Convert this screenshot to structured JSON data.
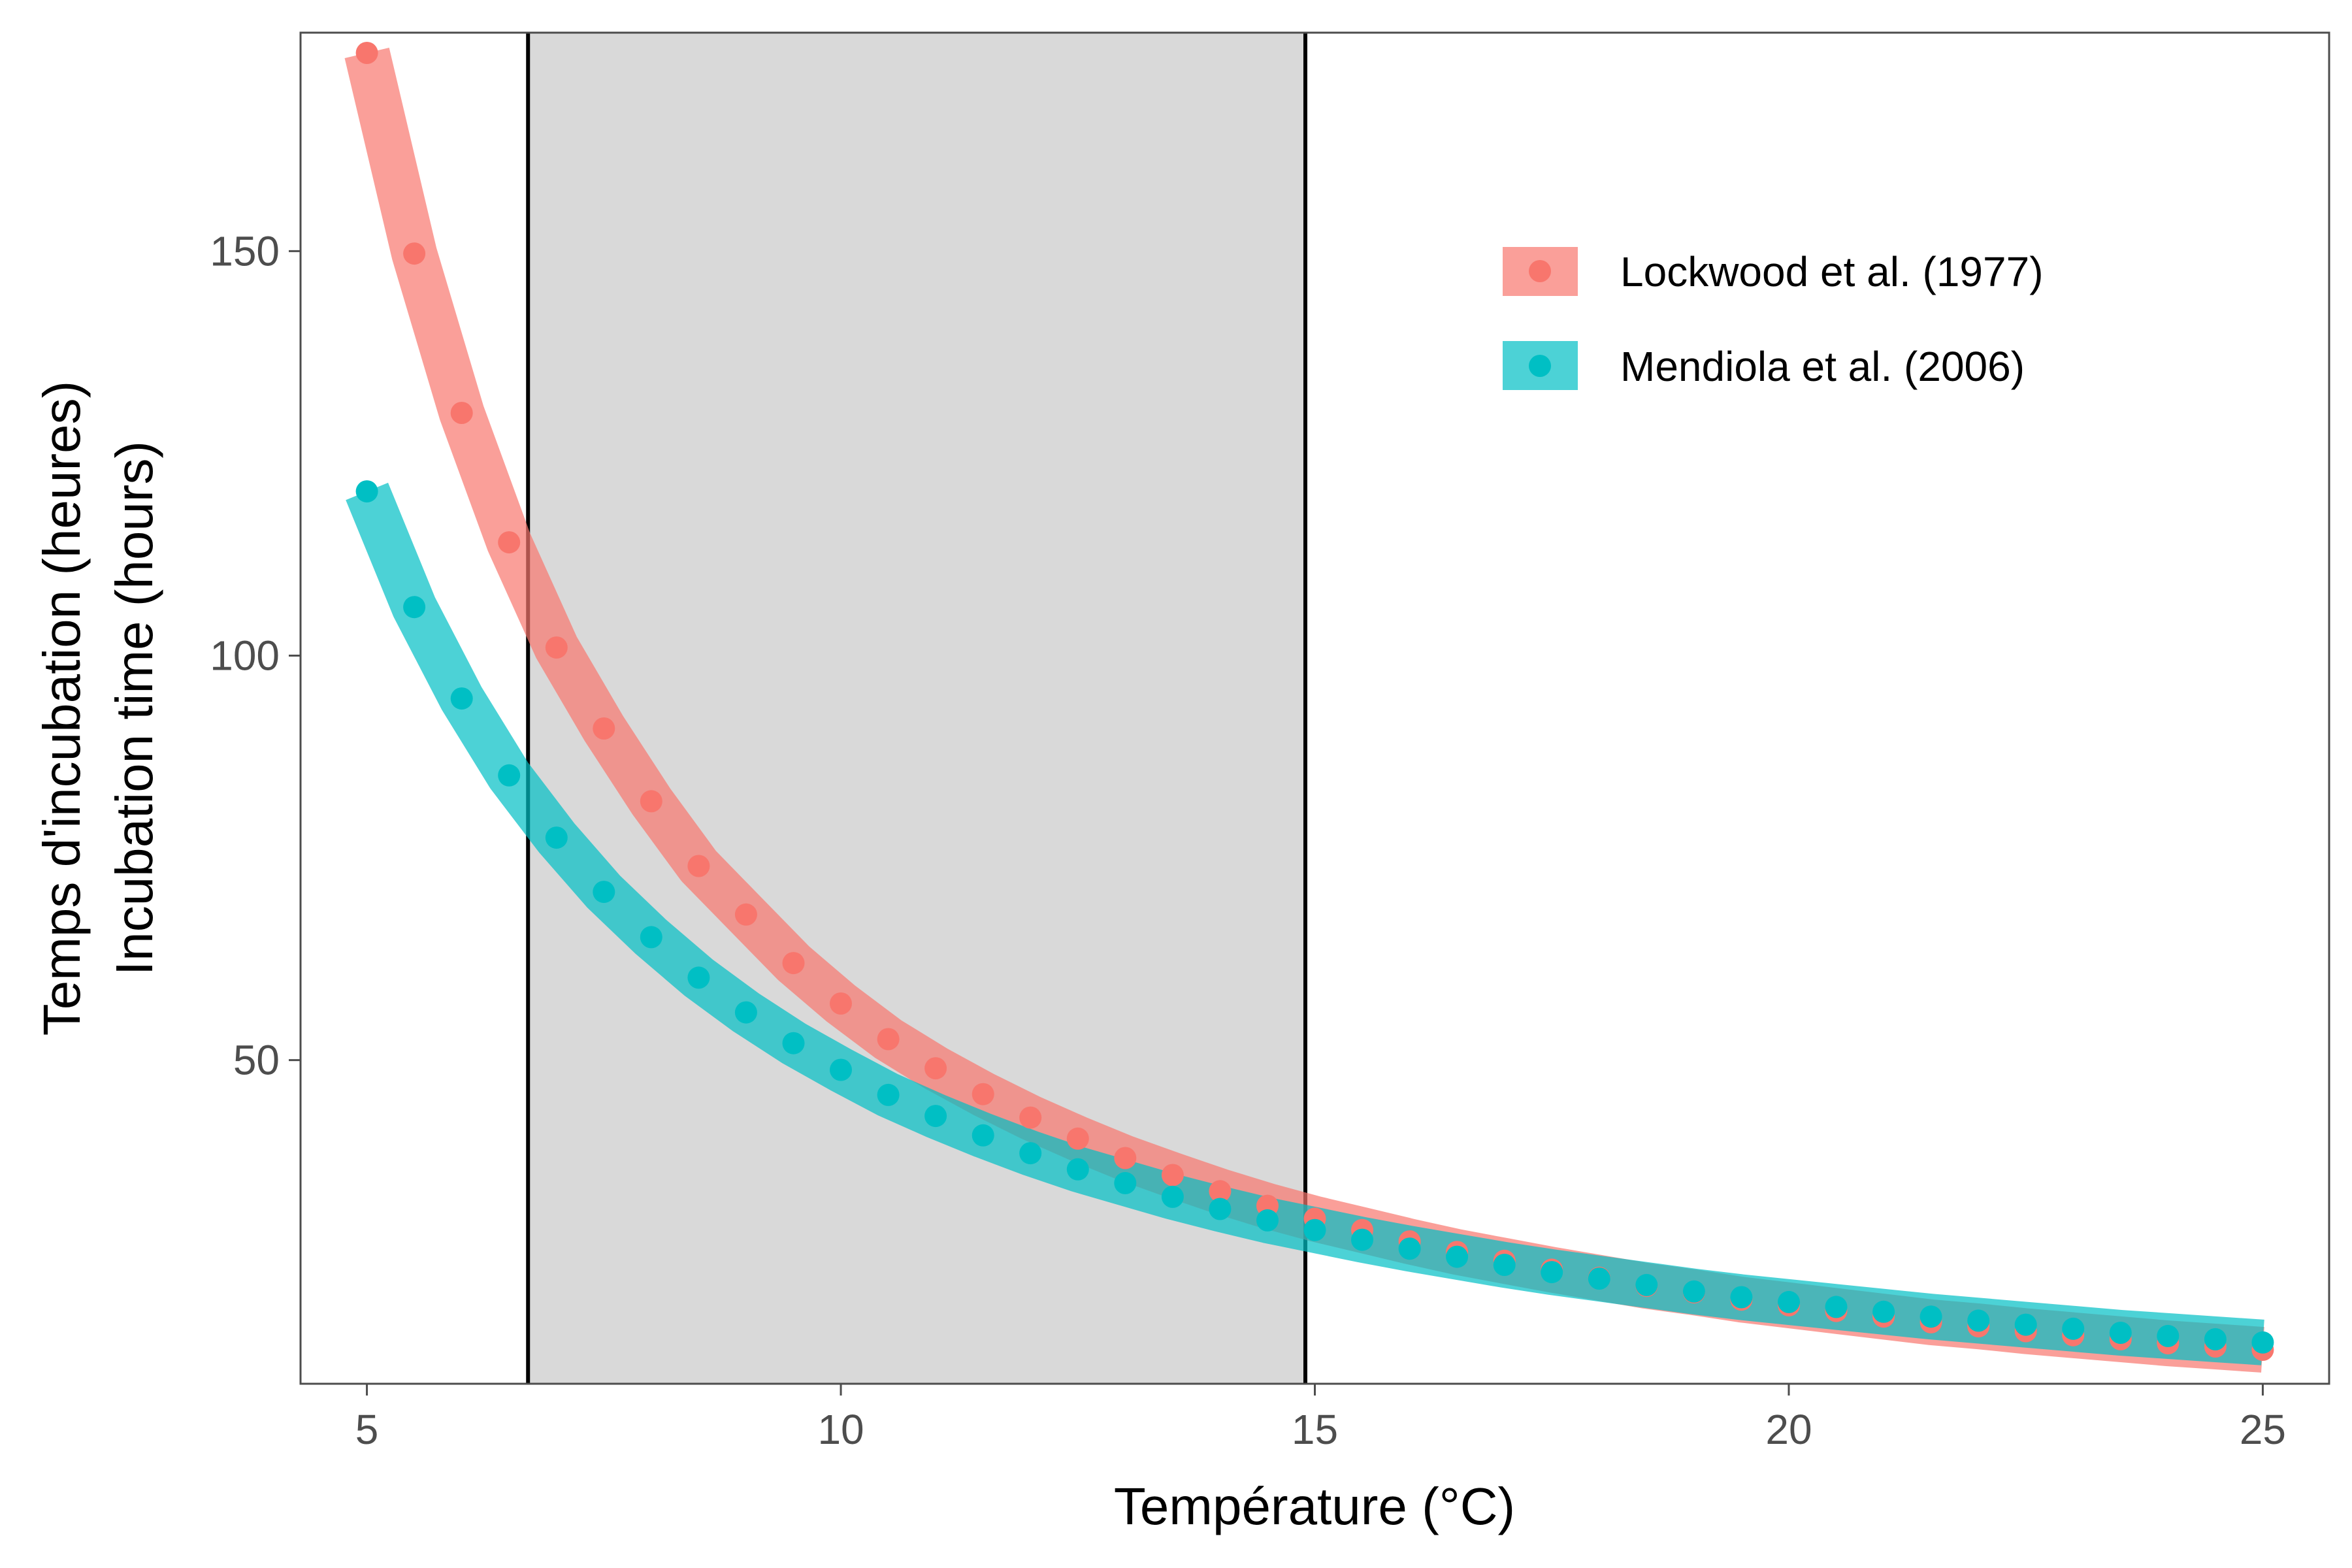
{
  "chart_data": {
    "type": "line",
    "xlabel": "Température (°C)",
    "ylabel_lines": [
      "Temps d'incubation (heures)",
      "Incubation time (hours)"
    ],
    "xlim": [
      4.3,
      25.7
    ],
    "ylim": [
      10,
      177
    ],
    "x_ticks": [
      5,
      10,
      15,
      20,
      25
    ],
    "y_ticks": [
      50,
      100,
      150
    ],
    "grid": false,
    "legend_position": "top-right",
    "shaded_range": {
      "x_start": 6.7,
      "x_end": 14.9,
      "color": "#d9d9d9"
    },
    "series": [
      {
        "name": "Lockwood et al. (1977)",
        "color": "#F8766D",
        "x": [
          5,
          5.5,
          6,
          6.5,
          7,
          7.5,
          8,
          8.5,
          9,
          9.5,
          10,
          10.5,
          11,
          11.5,
          12,
          12.5,
          13,
          13.5,
          14,
          14.5,
          15,
          15.5,
          16,
          16.5,
          17,
          17.5,
          18,
          18.5,
          19,
          19.5,
          20,
          20.5,
          21,
          21.5,
          22,
          22.5,
          23,
          23.5,
          24,
          24.5,
          25
        ],
        "y": [
          174.5,
          149.7,
          130,
          114,
          101,
          91,
          82,
          74,
          68,
          62,
          57,
          52.6,
          49,
          45.8,
          42.9,
          40.3,
          37.9,
          35.8,
          33.8,
          32,
          30.4,
          29,
          27.6,
          26.3,
          25.2,
          24.1,
          23.1,
          22.1,
          21.3,
          20.4,
          19.7,
          19,
          18.3,
          17.6,
          17.1,
          16.5,
          16,
          15.5,
          15,
          14.6,
          14.2
        ]
      },
      {
        "name": "Mendiola et al. (2006)",
        "color": "#00BFC4",
        "x": [
          5,
          5.5,
          6,
          6.5,
          7,
          7.5,
          8,
          8.5,
          9,
          9.5,
          10,
          10.5,
          11,
          11.5,
          12,
          12.5,
          13,
          13.5,
          14,
          14.5,
          15,
          15.5,
          16,
          16.5,
          17,
          17.5,
          18,
          18.5,
          19,
          19.5,
          20,
          20.5,
          21,
          21.5,
          22,
          22.5,
          23,
          23.5,
          24,
          24.5,
          25
        ],
        "y": [
          120.3,
          106,
          94.7,
          85.2,
          77.5,
          70.8,
          65.2,
          60.2,
          55.9,
          52.1,
          48.8,
          45.7,
          43.1,
          40.7,
          38.5,
          36.5,
          34.8,
          33.1,
          31.6,
          30.2,
          29,
          27.8,
          26.7,
          25.7,
          24.7,
          23.8,
          23,
          22.2,
          21.4,
          20.7,
          20.1,
          19.5,
          18.9,
          18.3,
          17.8,
          17.3,
          16.8,
          16.3,
          15.9,
          15.5,
          15.1
        ]
      }
    ]
  }
}
